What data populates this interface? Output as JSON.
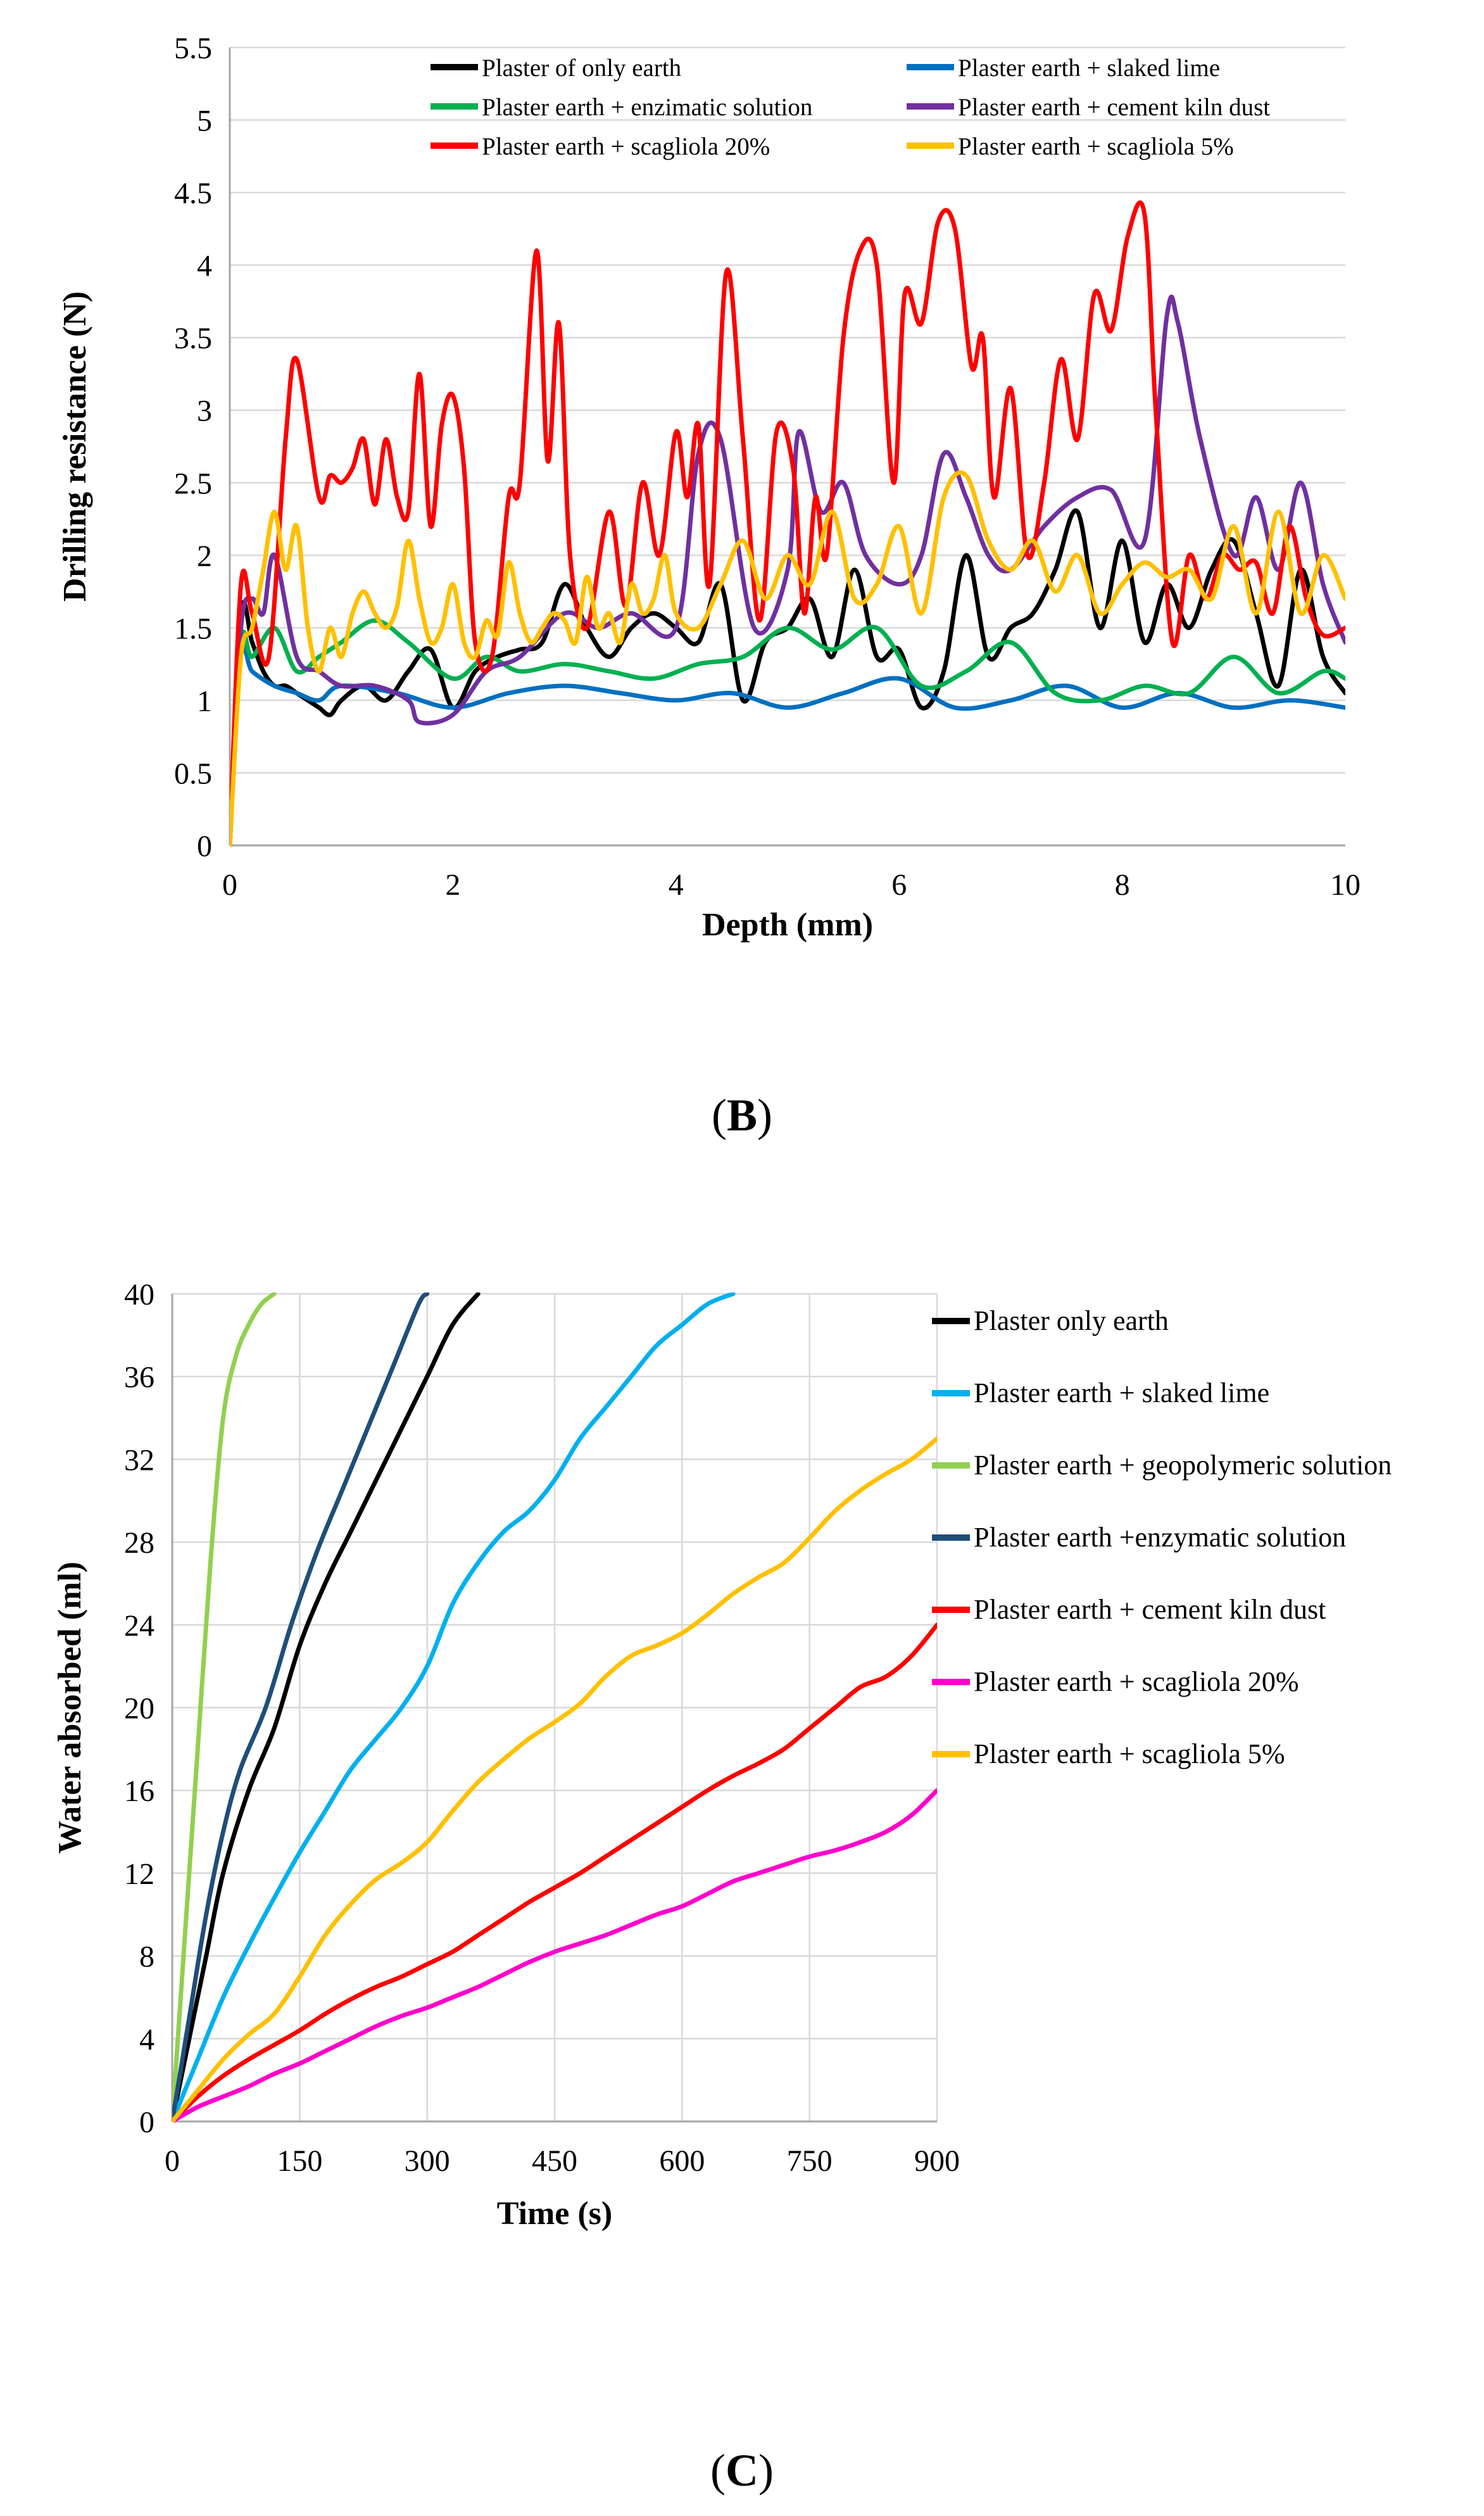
{
  "chart_data": [
    {
      "id": "B",
      "type": "line",
      "xlabel": "Depth (mm)",
      "ylabel": "Drilling resistance (N)",
      "xlim": [
        0,
        10
      ],
      "ylim": [
        0,
        5.5
      ],
      "x_ticks": [
        "0",
        "2",
        "4",
        "6",
        "8",
        "10"
      ],
      "y_ticks": [
        "0",
        "0.5",
        "1",
        "1.5",
        "2",
        "2.5",
        "3",
        "3.5",
        "4",
        "4.5",
        "5",
        "5.5"
      ],
      "legend_position": "top",
      "grid": true,
      "series": [
        {
          "name": "Plaster of only earth",
          "color": "#000000",
          "x": [
            0,
            0.1,
            0.2,
            0.3,
            0.4,
            0.5,
            0.6,
            0.7,
            0.8,
            0.9,
            1,
            1.2,
            1.4,
            1.6,
            1.8,
            2,
            2.2,
            2.4,
            2.6,
            2.8,
            3,
            3.2,
            3.4,
            3.6,
            3.8,
            4,
            4.2,
            4.4,
            4.6,
            4.8,
            5,
            5.2,
            5.4,
            5.6,
            5.8,
            6,
            6.2,
            6.4,
            6.6,
            6.8,
            7,
            7.2,
            7.4,
            7.6,
            7.8,
            8,
            8.2,
            8.4,
            8.6,
            8.8,
            9,
            9.2,
            9.4,
            9.6,
            9.8,
            10
          ],
          "values": [
            0,
            1.6,
            1.4,
            1.2,
            1.1,
            1.1,
            1.05,
            1.0,
            0.95,
            0.9,
            1.0,
            1.1,
            1.0,
            1.2,
            1.35,
            0.95,
            1.2,
            1.3,
            1.35,
            1.4,
            1.8,
            1.5,
            1.3,
            1.5,
            1.6,
            1.5,
            1.4,
            1.8,
            1.0,
            1.4,
            1.5,
            1.7,
            1.3,
            1.9,
            1.3,
            1.35,
            0.95,
            1.2,
            2.0,
            1.3,
            1.5,
            1.6,
            1.9,
            2.3,
            1.5,
            2.1,
            1.4,
            1.8,
            1.5,
            1.9,
            2.1,
            1.6,
            1.1,
            1.9,
            1.3,
            1.05
          ]
        },
        {
          "name": "Plaster earth + slaked lime",
          "color": "#0070C0",
          "x": [
            0,
            0.1,
            0.2,
            0.4,
            0.6,
            0.8,
            1,
            1.5,
            2,
            2.5,
            3,
            3.5,
            4,
            4.5,
            5,
            5.5,
            6,
            6.5,
            7,
            7.5,
            8,
            8.5,
            9,
            9.5,
            10
          ],
          "values": [
            0,
            1.3,
            1.2,
            1.1,
            1.05,
            1.0,
            1.1,
            1.05,
            0.95,
            1.05,
            1.1,
            1.05,
            1.0,
            1.05,
            0.95,
            1.05,
            1.15,
            0.95,
            1.0,
            1.1,
            0.95,
            1.05,
            0.95,
            1.0,
            0.95
          ]
        },
        {
          "name": "Plaster earth + enzimatic solution",
          "color": "#00B050",
          "x": [
            0,
            0.1,
            0.2,
            0.4,
            0.6,
            0.8,
            1,
            1.3,
            1.6,
            2,
            2.3,
            2.6,
            3,
            3.4,
            3.8,
            4.2,
            4.6,
            5,
            5.4,
            5.8,
            6.2,
            6.6,
            7,
            7.4,
            7.8,
            8.2,
            8.6,
            9,
            9.4,
            9.8,
            10
          ],
          "values": [
            0,
            1.4,
            1.3,
            1.5,
            1.2,
            1.3,
            1.4,
            1.55,
            1.4,
            1.15,
            1.3,
            1.2,
            1.25,
            1.2,
            1.15,
            1.25,
            1.3,
            1.5,
            1.35,
            1.5,
            1.1,
            1.2,
            1.4,
            1.05,
            1.0,
            1.1,
            1.05,
            1.3,
            1.05,
            1.2,
            1.15
          ]
        },
        {
          "name": "Plaster earth + cement kiln dust",
          "color": "#7030A0",
          "x": [
            0,
            0.1,
            0.2,
            0.3,
            0.4,
            0.6,
            0.8,
            1,
            1.3,
            1.6,
            1.7,
            2,
            2.3,
            2.6,
            3,
            3.3,
            3.6,
            4,
            4.2,
            4.4,
            4.7,
            5,
            5.1,
            5.3,
            5.5,
            5.7,
            6,
            6.2,
            6.4,
            6.6,
            6.8,
            7,
            7.3,
            7.6,
            7.9,
            8.2,
            8.4,
            8.5,
            8.7,
            9,
            9.2,
            9.4,
            9.6,
            9.8,
            10
          ],
          "values": [
            0,
            1.5,
            1.7,
            1.6,
            2.0,
            1.3,
            1.2,
            1.1,
            1.1,
            1.0,
            0.85,
            0.9,
            1.2,
            1.3,
            1.6,
            1.5,
            1.6,
            1.5,
            2.7,
            2.8,
            1.5,
            1.9,
            2.85,
            2.3,
            2.5,
            2.0,
            1.8,
            2.0,
            2.7,
            2.4,
            2.0,
            1.9,
            2.2,
            2.4,
            2.45,
            2.1,
            3.65,
            3.6,
            2.8,
            2.0,
            2.4,
            1.9,
            2.5,
            1.8,
            1.4
          ]
        },
        {
          "name": "Plaster earth + scagliola 20%",
          "color": "#FF0000",
          "x": [
            0,
            0.1,
            0.2,
            0.35,
            0.5,
            0.6,
            0.8,
            0.9,
            1,
            1.1,
            1.2,
            1.3,
            1.4,
            1.5,
            1.6,
            1.7,
            1.8,
            1.9,
            2,
            2.1,
            2.2,
            2.35,
            2.5,
            2.6,
            2.75,
            2.85,
            2.95,
            3.05,
            3.2,
            3.4,
            3.55,
            3.7,
            3.85,
            4,
            4.1,
            4.2,
            4.3,
            4.45,
            4.6,
            4.75,
            4.9,
            5.05,
            5.15,
            5.25,
            5.35,
            5.5,
            5.65,
            5.8,
            5.95,
            6.05,
            6.2,
            6.35,
            6.5,
            6.65,
            6.75,
            6.85,
            7,
            7.15,
            7.3,
            7.45,
            7.6,
            7.75,
            7.9,
            8.05,
            8.2,
            8.3,
            8.45,
            8.6,
            8.75,
            8.9,
            9.05,
            9.2,
            9.35,
            9.5,
            9.65,
            9.8,
            10
          ],
          "values": [
            0,
            1.8,
            1.6,
            1.3,
            2.8,
            3.35,
            2.4,
            2.55,
            2.5,
            2.6,
            2.8,
            2.35,
            2.8,
            2.4,
            2.3,
            3.25,
            2.2,
            2.9,
            3.1,
            2.6,
            1.4,
            1.3,
            2.4,
            2.5,
            4.1,
            2.65,
            3.6,
            2.0,
            1.5,
            2.3,
            1.65,
            2.5,
            2.0,
            2.85,
            2.4,
            2.9,
            1.8,
            3.95,
            2.8,
            1.55,
            2.85,
            2.6,
            1.6,
            2.4,
            2.0,
            3.5,
            4.1,
            4.0,
            2.5,
            3.8,
            3.6,
            4.3,
            4.25,
            3.3,
            3.5,
            2.4,
            3.15,
            2.0,
            2.5,
            3.35,
            2.8,
            3.8,
            3.55,
            4.2,
            4.35,
            3.0,
            1.4,
            2.0,
            1.7,
            2.0,
            1.9,
            1.95,
            1.6,
            2.2,
            1.7,
            1.45,
            1.5
          ]
        },
        {
          "name": "Plaster earth + scagliola 5%",
          "color": "#FFC000",
          "x": [
            0,
            0.1,
            0.2,
            0.3,
            0.4,
            0.5,
            0.6,
            0.7,
            0.8,
            0.9,
            1,
            1.1,
            1.2,
            1.3,
            1.4,
            1.5,
            1.6,
            1.7,
            1.8,
            1.9,
            2,
            2.1,
            2.2,
            2.3,
            2.4,
            2.5,
            2.6,
            2.7,
            2.8,
            2.9,
            3,
            3.1,
            3.2,
            3.3,
            3.4,
            3.5,
            3.6,
            3.7,
            3.8,
            3.9,
            4,
            4.2,
            4.4,
            4.6,
            4.8,
            5,
            5.2,
            5.4,
            5.6,
            5.8,
            6,
            6.2,
            6.4,
            6.6,
            6.8,
            7,
            7.2,
            7.4,
            7.6,
            7.8,
            8,
            8.2,
            8.4,
            8.6,
            8.8,
            9,
            9.2,
            9.4,
            9.6,
            9.8,
            10
          ],
          "values": [
            0,
            1.3,
            1.5,
            1.9,
            2.3,
            1.9,
            2.2,
            1.5,
            1.2,
            1.5,
            1.3,
            1.6,
            1.75,
            1.6,
            1.5,
            1.65,
            2.1,
            1.7,
            1.4,
            1.5,
            1.8,
            1.4,
            1.3,
            1.55,
            1.45,
            1.95,
            1.6,
            1.4,
            1.5,
            1.6,
            1.55,
            1.4,
            1.85,
            1.5,
            1.6,
            1.4,
            1.8,
            1.6,
            1.7,
            2.0,
            1.6,
            1.5,
            1.8,
            2.1,
            1.7,
            2.0,
            1.8,
            2.3,
            1.7,
            1.8,
            2.2,
            1.6,
            2.4,
            2.55,
            2.1,
            1.9,
            2.1,
            1.75,
            2.0,
            1.6,
            1.8,
            1.95,
            1.85,
            1.9,
            1.7,
            2.2,
            1.6,
            2.3,
            1.6,
            2.0,
            1.7
          ]
        }
      ]
    },
    {
      "id": "C",
      "type": "line",
      "xlabel": "Time (s)",
      "ylabel": "Water absorbed (ml)",
      "xlim": [
        0,
        900
      ],
      "ylim": [
        0,
        40
      ],
      "x_ticks": [
        "0",
        "150",
        "300",
        "450",
        "600",
        "750",
        "900"
      ],
      "y_ticks": [
        "0",
        "4",
        "8",
        "12",
        "16",
        "20",
        "24",
        "28",
        "32",
        "36",
        "40"
      ],
      "legend_position": "right",
      "grid": true,
      "series": [
        {
          "name": "Plaster only earth",
          "color": "#000000",
          "x": [
            0,
            20,
            40,
            60,
            90,
            120,
            150,
            180,
            210,
            240,
            270,
            300,
            330,
            360
          ],
          "values": [
            0,
            4,
            8,
            12,
            16,
            19,
            23,
            26,
            28.5,
            31,
            33.5,
            36,
            38.5,
            40
          ]
        },
        {
          "name": "Plaster earth + slaked lime",
          "color": "#00B0F0",
          "x": [
            0,
            30,
            60,
            90,
            120,
            150,
            180,
            210,
            240,
            270,
            300,
            330,
            360,
            390,
            420,
            450,
            480,
            510,
            540,
            570,
            600,
            630,
            660
          ],
          "values": [
            0,
            3,
            6,
            8.5,
            10.8,
            13,
            15,
            17,
            18.5,
            20,
            22,
            25,
            27,
            28.5,
            29.5,
            31,
            33,
            34.5,
            36,
            37.5,
            38.5,
            39.5,
            40
          ]
        },
        {
          "name": "Plaster earth + geopolymeric solution",
          "color": "#92D050",
          "x": [
            0,
            15,
            30,
            45,
            60,
            75,
            90,
            105,
            120
          ],
          "values": [
            0,
            9,
            18,
            27,
            34,
            37,
            38.5,
            39.5,
            40
          ]
        },
        {
          "name": "Plaster earth +enzymatic solution",
          "color": "#1F4E79",
          "x": [
            0,
            20,
            40,
            60,
            80,
            110,
            140,
            170,
            200,
            230,
            260,
            290,
            300
          ],
          "values": [
            0,
            5,
            10,
            14,
            17,
            20,
            24,
            27.5,
            30.5,
            33.5,
            36.5,
            39.5,
            40
          ]
        },
        {
          "name": "Plaster earth + cement kiln dust",
          "color": "#FF0000",
          "x": [
            0,
            30,
            60,
            90,
            120,
            150,
            180,
            210,
            240,
            270,
            300,
            330,
            360,
            390,
            420,
            450,
            480,
            510,
            540,
            570,
            600,
            630,
            660,
            690,
            720,
            750,
            780,
            810,
            840,
            870,
            900
          ],
          "values": [
            0,
            1.2,
            2.2,
            3.0,
            3.7,
            4.4,
            5.2,
            5.9,
            6.5,
            7.0,
            7.6,
            8.2,
            9.0,
            9.8,
            10.6,
            11.3,
            12.0,
            12.8,
            13.6,
            14.4,
            15.2,
            16.0,
            16.7,
            17.3,
            18.0,
            19.0,
            20.0,
            21.0,
            21.5,
            22.5,
            24.0
          ]
        },
        {
          "name": "Plaster earth + scagliola 20%",
          "color": "#FF00CC",
          "x": [
            0,
            30,
            60,
            90,
            120,
            150,
            180,
            210,
            240,
            270,
            300,
            330,
            360,
            390,
            420,
            450,
            480,
            510,
            540,
            570,
            600,
            630,
            660,
            690,
            720,
            750,
            780,
            810,
            840,
            870,
            900
          ],
          "values": [
            0,
            0.7,
            1.2,
            1.7,
            2.3,
            2.8,
            3.4,
            4.0,
            4.6,
            5.1,
            5.5,
            6.0,
            6.5,
            7.1,
            7.7,
            8.2,
            8.6,
            9.0,
            9.5,
            10.0,
            10.4,
            11.0,
            11.6,
            12.0,
            12.4,
            12.8,
            13.1,
            13.5,
            14.0,
            14.8,
            16.0
          ]
        },
        {
          "name": "Plaster earth + scagliola 5%",
          "color": "#FFC000",
          "x": [
            0,
            30,
            60,
            90,
            120,
            150,
            180,
            210,
            240,
            270,
            300,
            330,
            360,
            390,
            420,
            450,
            480,
            510,
            540,
            570,
            600,
            630,
            660,
            690,
            720,
            750,
            780,
            810,
            840,
            870,
            900
          ],
          "values": [
            0,
            1.5,
            3.0,
            4.2,
            5.2,
            7.0,
            9.0,
            10.5,
            11.7,
            12.5,
            13.5,
            15.0,
            16.4,
            17.5,
            18.5,
            19.3,
            20.2,
            21.5,
            22.5,
            23.0,
            23.6,
            24.5,
            25.5,
            26.3,
            27.0,
            28.2,
            29.5,
            30.5,
            31.3,
            32.0,
            33.0
          ]
        }
      ]
    }
  ],
  "panels": {
    "b_prefix": "(",
    "b_letter": "B",
    "b_suffix": ")",
    "c_prefix": "(",
    "c_letter": "C",
    "c_suffix": ")"
  }
}
